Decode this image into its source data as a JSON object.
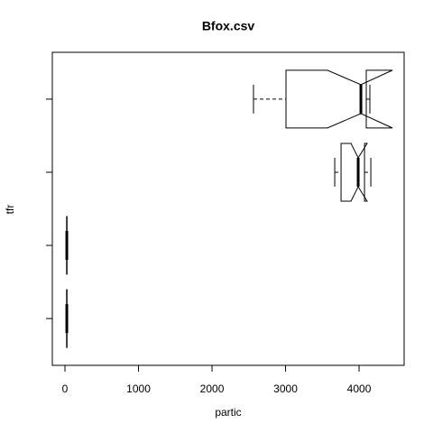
{
  "chart_data": {
    "type": "boxplot",
    "orientation": "horizontal",
    "notch": true,
    "title": "Bfox.csv",
    "x_label": "partic",
    "y_label": "tfr",
    "categories": [
      null,
      null,
      null,
      null
    ],
    "boxes": [
      {
        "whisker_low": 20,
        "q1": 22,
        "median": 25,
        "q3": 28,
        "whisker_high": 32,
        "notch_low": 23,
        "notch_high": 27
      },
      {
        "whisker_low": 20,
        "q1": 22,
        "median": 25,
        "q3": 28,
        "whisker_high": 32,
        "notch_low": 23,
        "notch_high": 27
      },
      {
        "whisker_low": 3669,
        "q1": 3755,
        "median": 3988,
        "q3": 4074,
        "whisker_high": 4160,
        "notch_low": 3890,
        "notch_high": 4110
      },
      {
        "whisker_low": 2564,
        "q1": 3006,
        "median": 4025,
        "q3": 4098,
        "whisker_high": 4147,
        "notch_low": 3570,
        "notch_high": 4454
      }
    ],
    "xlim": [
      -172,
      4613
    ],
    "xticks": [
      0,
      1000,
      2000,
      3000,
      4000
    ],
    "ylim": [
      0.36,
      4.64
    ],
    "yticks": [
      1,
      2,
      3,
      4
    ]
  }
}
